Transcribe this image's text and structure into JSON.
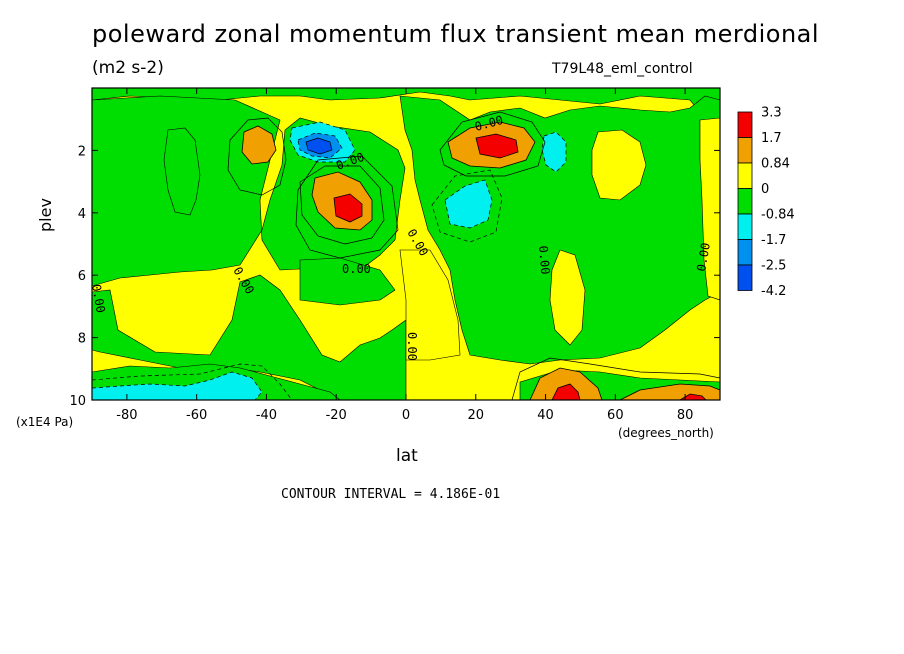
{
  "title": "poleward zonal momentum flux transient mean merdional",
  "units": "(m2 s-2)",
  "run_label": "T79L48_eml_control",
  "contour_text": "CONTOUR INTERVAL = 4.186E-01",
  "colors": {
    "red": "#f40000",
    "orange": "#f0a000",
    "yellow": "#ffff00",
    "green": "#00dd00",
    "cyan": "#00f0f0",
    "blue": "#0090f0",
    "dark_blue": "#0050f0"
  },
  "chart_data": {
    "type": "heatmap",
    "xlabel": "lat",
    "x_unit": "(degrees_north)",
    "ylabel": "plev",
    "y_unit": "(x1E4 Pa)",
    "xlim": [
      -90,
      90
    ],
    "ylim": [
      10,
      0
    ],
    "x_ticks": [
      "-80",
      "-60",
      "-40",
      "-20",
      "0",
      "20",
      "40",
      "60",
      "80"
    ],
    "y_ticks": [
      "2",
      "4",
      "6",
      "8",
      "10"
    ],
    "colorbar": {
      "levels": [
        "3.3",
        "1.7",
        "0.84",
        "0",
        "-0.84",
        "-1.7",
        "-2.5",
        "-4.2"
      ],
      "colors": [
        "#f40000",
        "#f0a000",
        "#ffff00",
        "#00dd00",
        "#00f0f0",
        "#0090f0",
        "#0050f0"
      ]
    },
    "contour_labels": [
      "0.00",
      "0.00",
      "0.00",
      "0.00",
      "0.00",
      "0.00",
      "0.00",
      "0.00",
      "0.00"
    ],
    "features": [
      {
        "kind": "positive",
        "lat": -18,
        "plev": 3.7,
        "level": "1.7"
      },
      {
        "kind": "positive",
        "lat": 27,
        "plev": 2.0,
        "level": "1.7"
      },
      {
        "kind": "positive",
        "lat": -40,
        "plev": 2.0,
        "level": "0.84"
      },
      {
        "kind": "positive",
        "lat": 45,
        "plev": 9.9,
        "level": "1.7"
      },
      {
        "kind": "positive",
        "lat": 82,
        "plev": 9.9,
        "level": "1.7"
      },
      {
        "kind": "negative",
        "lat": -26,
        "plev": 2.0,
        "level": "-1.7"
      },
      {
        "kind": "negative",
        "lat": 18,
        "plev": 3.9,
        "level": "-0.84"
      },
      {
        "kind": "negative",
        "lat": 43,
        "plev": 2.1,
        "level": "-0.84"
      },
      {
        "kind": "negative",
        "lat": -75,
        "plev": 9.9,
        "level": "-0.84"
      }
    ]
  }
}
